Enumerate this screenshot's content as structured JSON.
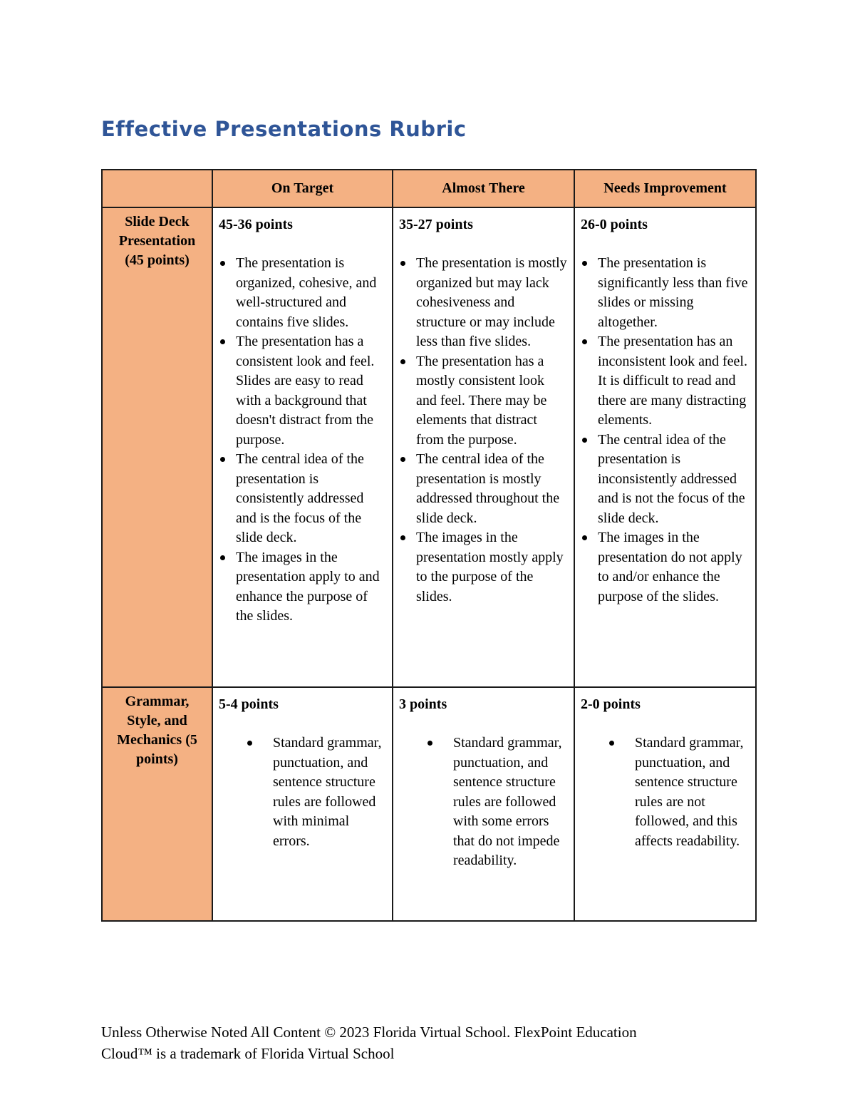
{
  "page": {
    "title": "Effective Presentations Rubric",
    "footer": {
      "line1": "Unless Otherwise Noted All Content © 2023 Florida Virtual School. FlexPoint Education",
      "line2": "Cloud™ is a trademark of Florida Virtual School"
    }
  },
  "colors": {
    "header_fill": "#F4B183",
    "title_blue": "#2F5597",
    "border": "#1a1a1a"
  },
  "table": {
    "columns": [
      "",
      "On Target",
      "Almost There",
      "Needs Improvement"
    ],
    "rows": [
      {
        "criterion": "Slide Deck Presentation (45 points)",
        "cells": [
          {
            "points": "45-36 points",
            "bullets": [
              "The presentation is organized, cohesive, and well-structured and contains five slides.",
              "The presentation has a consistent look and feel. Slides are easy to read with a background that doesn't distract from the purpose.",
              "The central idea of the presentation is consistently addressed and is the focus of the slide deck.",
              "The images in the presentation apply to and enhance the purpose of the slides."
            ]
          },
          {
            "points": "35-27 points",
            "bullets": [
              "The presentation is mostly organized but may lack cohesiveness and structure or may include less than five slides.",
              "The presentation has a mostly consistent look and feel. There may be elements that distract from the purpose.",
              "The central idea of the presentation is mostly addressed throughout the slide deck.",
              "The images in the presentation mostly apply to the purpose of the slides."
            ]
          },
          {
            "points": "26-0 points",
            "bullets": [
              "The presentation is significantly less than five slides or missing altogether.",
              "The presentation has an inconsistent look and feel. It is difficult to read and there are many distracting elements.",
              "The central idea of the presentation is inconsistently addressed and is not the focus of the slide deck.",
              "The images in the presentation do not apply to and/or enhance the purpose of the slides."
            ]
          }
        ]
      },
      {
        "criterion": "Grammar, Style, and Mechanics (5 points)",
        "cells": [
          {
            "points": "5-4 points",
            "bullets": [
              "Standard grammar, punctuation, and sentence structure rules are followed with minimal errors."
            ]
          },
          {
            "points": "3 points",
            "bullets": [
              "Standard grammar, punctuation, and sentence structure rules are followed with some errors that do not impede readability."
            ]
          },
          {
            "points": "2-0 points",
            "bullets": [
              "Standard grammar, punctuation, and sentence structure rules are not followed, and this affects readability."
            ]
          }
        ]
      }
    ]
  }
}
